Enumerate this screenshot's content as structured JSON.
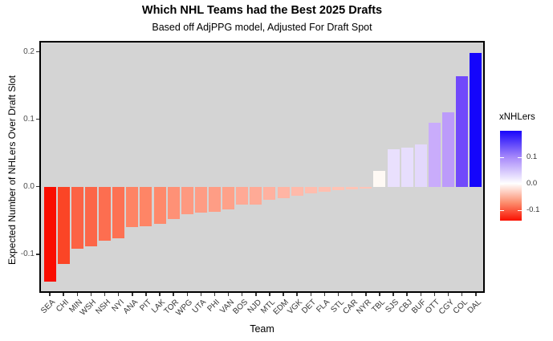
{
  "chart_data": {
    "type": "bar",
    "title": "Which NHL Teams had the Best 2025 Drafts",
    "subtitle": "Based off AdjPPG model, Adjusted For Draft Spot",
    "xlabel": "Team",
    "ylabel": "Expected Number of NHLers Over Draft Slot",
    "ylim": [
      -0.157,
      0.216
    ],
    "grid": false,
    "legend_position": "right",
    "panel_background": "#D4D4D4",
    "yticks": [
      {
        "value": 0.2,
        "label": "0.2"
      },
      {
        "value": 0.1,
        "label": "0.1"
      },
      {
        "value": 0.0,
        "label": "0.0"
      },
      {
        "value": -0.1,
        "label": "-0.1"
      }
    ],
    "categories": [
      "SEA",
      "CHI",
      "MIN",
      "WSH",
      "NSH",
      "NYI",
      "ANA",
      "PIT",
      "LAK",
      "TOR",
      "WPG",
      "UTA",
      "PHI",
      "VAN",
      "BOS",
      "NJD",
      "MTL",
      "EDM",
      "VGK",
      "DET",
      "FLA",
      "STL",
      "CAR",
      "NYR",
      "TBL",
      "SJS",
      "CBJ",
      "BUF",
      "OTT",
      "CGY",
      "COL",
      "DAL"
    ],
    "values": [
      -0.14,
      -0.114,
      -0.092,
      -0.088,
      -0.08,
      -0.077,
      -0.06,
      -0.059,
      -0.055,
      -0.048,
      -0.041,
      -0.038,
      -0.037,
      -0.034,
      -0.027,
      -0.026,
      -0.02,
      -0.017,
      -0.013,
      -0.01,
      -0.008,
      -0.005,
      -0.004,
      -0.003,
      0.024,
      0.056,
      0.058,
      0.063,
      0.095,
      0.11,
      0.164,
      0.198
    ],
    "bar_colors": [
      "#FA0D00",
      "#FB4526",
      "#FC6244",
      "#FC6648",
      "#FD6E50",
      "#FD7153",
      "#FE8465",
      "#FE8566",
      "#FE896B",
      "#FE9176",
      "#FE9980",
      "#FE9C84",
      "#FE9D85",
      "#FEA189",
      "#FFA995",
      "#FFAA96",
      "#FFB1A0",
      "#FFB5A4",
      "#FFBAAA",
      "#FFBDAE",
      "#FFBFB0",
      "#FFC3B5",
      "#FFC4B6",
      "#FFC5B8",
      "#FEF9F4",
      "#E9E0FD",
      "#E7DEFD",
      "#E3D8FC",
      "#C9ACFB",
      "#BC9BFA",
      "#7149FB",
      "#1405FB"
    ],
    "legend": {
      "title": "xNHLers",
      "range": [
        -0.141,
        0.199
      ],
      "ticks": [
        {
          "value": 0.1,
          "label": "0.1"
        },
        {
          "value": 0.0,
          "label": "0.0"
        },
        {
          "value": -0.1,
          "label": "-0.1"
        }
      ],
      "gradient_stops": [
        {
          "color": "#1805FB",
          "pos": 0
        },
        {
          "color": "#A98BFA",
          "pos": 30
        },
        {
          "color": "#FFFFFF",
          "pos": 58.7
        },
        {
          "color": "#FC8E6E",
          "pos": 80
        },
        {
          "color": "#FA1000",
          "pos": 100
        }
      ]
    }
  }
}
